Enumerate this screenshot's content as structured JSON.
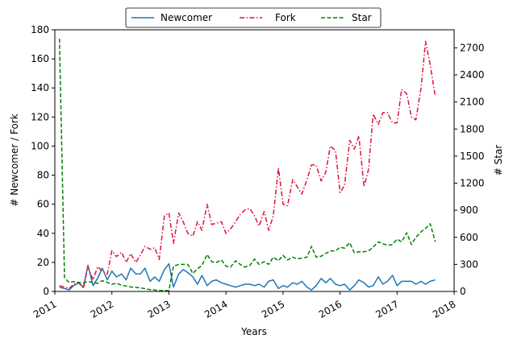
{
  "chart_data": {
    "type": "line",
    "title": "",
    "xlabel": "Years",
    "ylabel_left": "# Newcomer / Fork",
    "ylabel_right": "# Star",
    "xlim": [
      2011.0,
      2018.0
    ],
    "ylim_left": [
      0,
      180
    ],
    "ylim_right": [
      0,
      2900
    ],
    "x_ticks": [
      2011,
      2012,
      2013,
      2014,
      2015,
      2016,
      2017,
      2018
    ],
    "x_tick_labels": [
      "2011",
      "2012",
      "2013",
      "2014",
      "2015",
      "2016",
      "2017",
      "2018"
    ],
    "y_ticks_left": [
      0,
      20,
      40,
      60,
      80,
      100,
      120,
      140,
      160,
      180
    ],
    "y_ticks_right": [
      0,
      300,
      600,
      900,
      1200,
      1500,
      1800,
      2100,
      2400,
      2700
    ],
    "legend": {
      "placement": "top-center",
      "columns": 3
    },
    "grid": false,
    "series": [
      {
        "name": "Newcomer",
        "axis": "left",
        "color": "#1f77b4",
        "style": "solid",
        "x": [
          2011.08,
          2011.17,
          2011.25,
          2011.33,
          2011.42,
          2011.5,
          2011.58,
          2011.67,
          2011.75,
          2011.83,
          2011.92,
          2012.0,
          2012.08,
          2012.17,
          2012.25,
          2012.33,
          2012.42,
          2012.5,
          2012.58,
          2012.67,
          2012.75,
          2012.83,
          2012.92,
          2013.0,
          2013.08,
          2013.17,
          2013.25,
          2013.33,
          2013.42,
          2013.5,
          2013.58,
          2013.67,
          2013.75,
          2013.83,
          2013.92,
          2014.0,
          2014.08,
          2014.17,
          2014.25,
          2014.33,
          2014.42,
          2014.5,
          2014.58,
          2014.67,
          2014.75,
          2014.83,
          2014.92,
          2015.0,
          2015.08,
          2015.17,
          2015.25,
          2015.33,
          2015.42,
          2015.5,
          2015.58,
          2015.67,
          2015.75,
          2015.83,
          2015.92,
          2016.0,
          2016.08,
          2016.17,
          2016.25,
          2016.33,
          2016.42,
          2016.5,
          2016.58,
          2016.67,
          2016.75,
          2016.83,
          2016.92,
          2017.0,
          2017.08,
          2017.17,
          2017.25,
          2017.33,
          2017.42,
          2017.5,
          2017.58,
          2017.67
        ],
        "y": [
          3,
          2,
          1,
          4,
          6,
          3,
          18,
          4,
          9,
          16,
          8,
          14,
          10,
          12,
          8,
          16,
          12,
          12,
          16,
          7,
          10,
          7,
          15,
          19,
          3,
          12,
          15,
          13,
          10,
          5,
          11,
          4,
          7,
          8,
          6,
          5,
          4,
          3,
          4,
          5,
          5,
          4,
          5,
          3,
          7,
          8,
          2,
          4,
          3,
          6,
          5,
          7,
          3,
          1,
          4,
          9,
          6,
          9,
          5,
          4,
          5,
          1,
          4,
          8,
          6,
          3,
          4,
          10,
          5,
          7,
          11,
          4,
          7,
          7,
          7,
          5,
          7,
          5,
          7,
          8
        ]
      },
      {
        "name": "Fork",
        "axis": "left",
        "color": "#dc143c",
        "style": "dashdot",
        "x": [
          2011.08,
          2011.17,
          2011.25,
          2011.33,
          2011.42,
          2011.5,
          2011.58,
          2011.67,
          2011.75,
          2011.83,
          2011.92,
          2012.0,
          2012.08,
          2012.17,
          2012.25,
          2012.33,
          2012.42,
          2012.5,
          2012.58,
          2012.67,
          2012.75,
          2012.83,
          2012.92,
          2013.0,
          2013.08,
          2013.17,
          2013.25,
          2013.33,
          2013.42,
          2013.5,
          2013.58,
          2013.67,
          2013.75,
          2013.83,
          2013.92,
          2014.0,
          2014.08,
          2014.17,
          2014.25,
          2014.33,
          2014.42,
          2014.5,
          2014.58,
          2014.67,
          2014.75,
          2014.83,
          2014.92,
          2015.0,
          2015.08,
          2015.17,
          2015.25,
          2015.33,
          2015.42,
          2015.5,
          2015.58,
          2015.67,
          2015.75,
          2015.83,
          2015.92,
          2016.0,
          2016.08,
          2016.17,
          2016.25,
          2016.33,
          2016.42,
          2016.5,
          2016.58,
          2016.67,
          2016.75,
          2016.83,
          2016.92,
          2017.0,
          2017.08,
          2017.17,
          2017.25,
          2017.33,
          2017.42,
          2017.5,
          2017.58,
          2017.67
        ],
        "y": [
          4,
          3,
          2,
          5,
          6,
          2,
          17,
          8,
          17,
          14,
          12,
          28,
          24,
          27,
          20,
          26,
          20,
          25,
          31,
          29,
          30,
          22,
          52,
          54,
          33,
          54,
          48,
          40,
          38,
          48,
          42,
          60,
          46,
          47,
          48,
          40,
          43,
          48,
          53,
          56,
          57,
          52,
          45,
          55,
          42,
          52,
          85,
          60,
          59,
          77,
          72,
          67,
          77,
          87,
          87,
          76,
          82,
          100,
          97,
          68,
          73,
          104,
          98,
          107,
          72,
          84,
          122,
          115,
          123,
          123,
          116,
          116,
          139,
          136,
          120,
          118,
          140,
          172,
          156,
          134
        ]
      },
      {
        "name": "Star",
        "axis": "right",
        "color": "#008000",
        "style": "dashed",
        "x": [
          2011.08,
          2011.17,
          2011.25,
          2011.33,
          2011.42,
          2011.5,
          2011.58,
          2011.67,
          2011.75,
          2011.83,
          2011.92,
          2012.0,
          2012.08,
          2012.17,
          2012.25,
          2012.33,
          2012.42,
          2012.5,
          2012.58,
          2012.67,
          2012.75,
          2012.83,
          2012.92,
          2013.0,
          2013.08,
          2013.17,
          2013.25,
          2013.33,
          2013.42,
          2013.5,
          2013.58,
          2013.67,
          2013.75,
          2013.83,
          2013.92,
          2014.0,
          2014.08,
          2014.17,
          2014.25,
          2014.33,
          2014.42,
          2014.5,
          2014.58,
          2014.67,
          2014.75,
          2014.83,
          2014.92,
          2015.0,
          2015.08,
          2015.17,
          2015.25,
          2015.33,
          2015.42,
          2015.5,
          2015.58,
          2015.67,
          2015.75,
          2015.83,
          2015.92,
          2016.0,
          2016.08,
          2016.17,
          2016.25,
          2016.33,
          2016.42,
          2016.5,
          2016.58,
          2016.67,
          2016.75,
          2016.83,
          2016.92,
          2017.0,
          2017.08,
          2017.17,
          2017.25,
          2017.33,
          2017.42,
          2017.5,
          2017.58,
          2017.67
        ],
        "y": [
          2800,
          150,
          100,
          110,
          100,
          95,
          110,
          100,
          90,
          120,
          100,
          80,
          90,
          70,
          60,
          50,
          45,
          40,
          30,
          20,
          15,
          10,
          10,
          10,
          280,
          300,
          300,
          300,
          200,
          250,
          290,
          410,
          330,
          320,
          350,
          280,
          270,
          340,
          300,
          270,
          290,
          360,
          300,
          330,
          300,
          380,
          340,
          400,
          350,
          380,
          360,
          370,
          380,
          500,
          380,
          390,
          420,
          450,
          450,
          490,
          480,
          540,
          430,
          440,
          440,
          450,
          490,
          550,
          530,
          510,
          520,
          580,
          550,
          650,
          520,
          600,
          660,
          700,
          750,
          550
        ]
      }
    ]
  }
}
